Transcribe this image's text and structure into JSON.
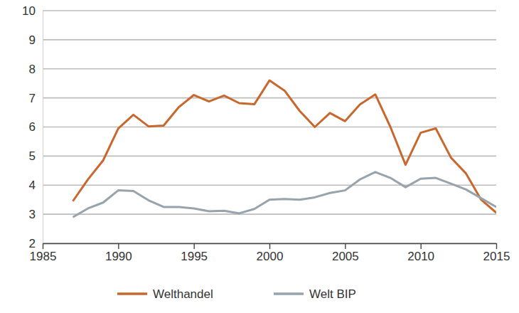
{
  "chart_data": {
    "type": "line",
    "x": [
      1987,
      1988,
      1989,
      1990,
      1991,
      1992,
      1993,
      1994,
      1995,
      1996,
      1997,
      1998,
      1999,
      2000,
      2001,
      2002,
      2003,
      2004,
      2005,
      2006,
      2007,
      2008,
      2009,
      2010,
      2011,
      2012,
      2013,
      2014,
      2015
    ],
    "series": [
      {
        "name": "Welthandel",
        "color": "#c8682e",
        "values": [
          3.45,
          4.2,
          4.85,
          5.95,
          6.42,
          6.02,
          6.05,
          6.68,
          7.1,
          6.88,
          7.08,
          6.82,
          6.78,
          7.6,
          7.25,
          6.55,
          6.0,
          6.48,
          6.2,
          6.78,
          7.12,
          6.0,
          4.7,
          5.8,
          5.95,
          4.95,
          4.4,
          3.5,
          3.05
        ]
      },
      {
        "name": "Welt BIP",
        "color": "#97a3ad",
        "values": [
          2.9,
          3.2,
          3.4,
          3.82,
          3.8,
          3.48,
          3.25,
          3.25,
          3.2,
          3.1,
          3.12,
          3.03,
          3.18,
          3.5,
          3.52,
          3.5,
          3.58,
          3.73,
          3.82,
          4.2,
          4.45,
          4.25,
          3.93,
          4.22,
          4.25,
          4.05,
          3.85,
          3.55,
          3.25
        ]
      }
    ],
    "xlim": [
      1985,
      2015
    ],
    "xticks": [
      1985,
      1990,
      1995,
      2000,
      2005,
      2010,
      2015
    ],
    "ylim": [
      2,
      10
    ],
    "yticks": [
      2,
      3,
      4,
      5,
      6,
      7,
      8,
      9,
      10
    ],
    "grid": true,
    "legend": "bottom"
  }
}
